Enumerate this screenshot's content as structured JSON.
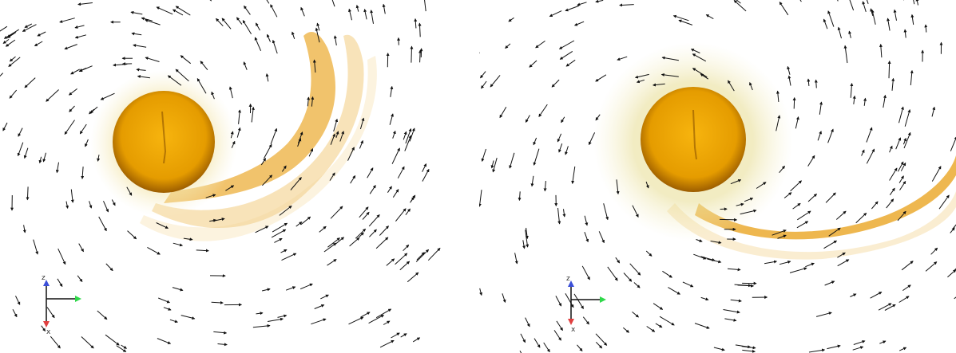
{
  "figure": {
    "panels": [
      {
        "id": "left",
        "axes_triad": {
          "labels": [
            "z",
            "x"
          ],
          "colors": {
            "z": "#3b4fd8",
            "y": "#2fd84a",
            "x": "#e04040"
          }
        },
        "colors": {
          "core": "#f2a300",
          "core_dark": "#b86d00",
          "tail": "#eaa21a",
          "arrow": "#111111"
        }
      },
      {
        "id": "right",
        "axes_triad": {
          "labels": [
            "z",
            "x"
          ],
          "colors": {
            "z": "#3b4fd8",
            "y": "#2fd84a",
            "x": "#e04040"
          }
        },
        "colors": {
          "core": "#f2a300",
          "core_dark": "#b86d00",
          "tail": "#eaa21a",
          "arrow": "#111111"
        }
      }
    ]
  }
}
